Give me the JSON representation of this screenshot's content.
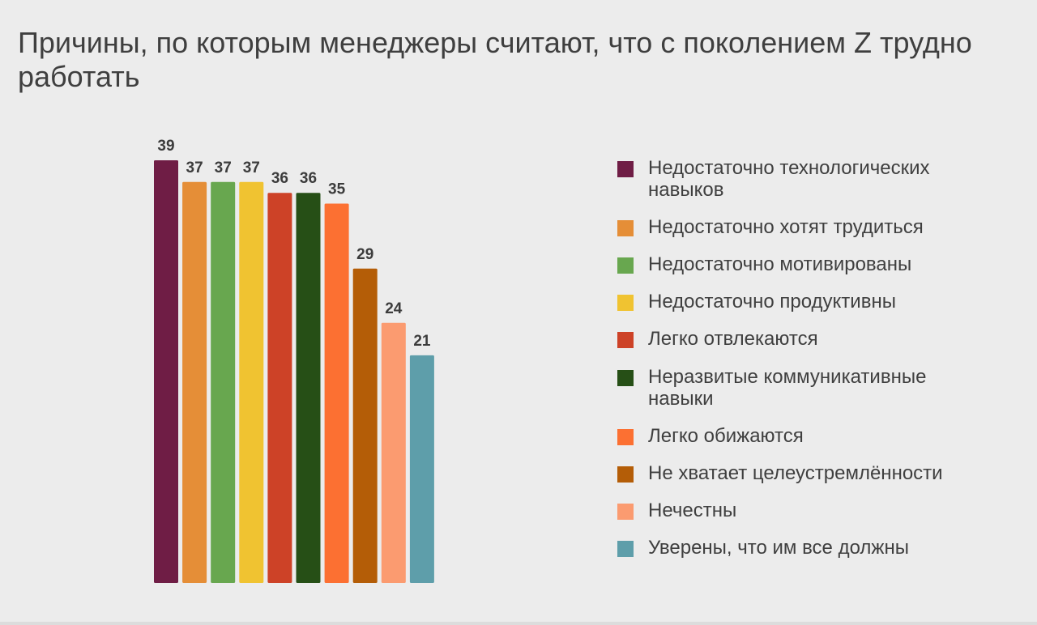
{
  "title": "Причины, по которым менеджеры считают, что с поколением Z трудно работать",
  "chart_data": {
    "type": "bar",
    "title": "Причины, по которым менеджеры считают, что с поколением Z трудно работать",
    "xlabel": "",
    "ylabel": "",
    "ylim": [
      0,
      39
    ],
    "grid": false,
    "legend_position": "right",
    "categories": [
      "Недостаточно технологических навыков",
      "Недостаточно хотят трудиться",
      "Недостаточно мотивированы",
      "Недостаточно продуктивны",
      "Легко отвлекаются",
      "Неразвитые коммуникативные навыки",
      "Легко обижаются",
      "Не хватает целеустремлённости",
      "Нечестны",
      "Уверены, что им все должны"
    ],
    "values": [
      39,
      37,
      37,
      37,
      36,
      36,
      35,
      29,
      24,
      21
    ],
    "colors": [
      "#6f1d45",
      "#e58e37",
      "#68a74f",
      "#f0c331",
      "#cd4227",
      "#264f16",
      "#fc7032",
      "#b45d07",
      "#fb9b70",
      "#5e9eaa"
    ]
  }
}
